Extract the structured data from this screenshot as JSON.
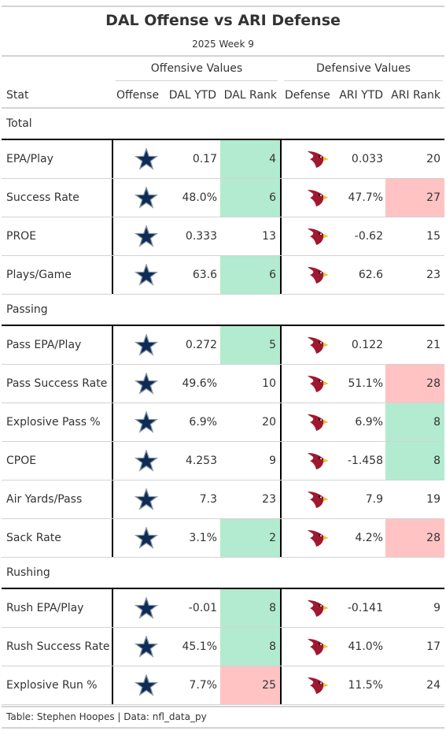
{
  "title": "DAL Offense vs ARI Defense",
  "subtitle": "2025 Week 9",
  "spanners": {
    "offense": "Offensive Values",
    "defense": "Defensive Values"
  },
  "columns": {
    "stat": "Stat",
    "offense": "Offense",
    "off_ytd": "DAL YTD",
    "off_rank": "DAL Rank",
    "defense": "Defense",
    "def_ytd": "ARI YTD",
    "def_rank": "ARI Rank"
  },
  "icons": {
    "offense": "dallas-cowboys-star-icon",
    "defense": "arizona-cardinals-bird-icon"
  },
  "colors": {
    "good": "#b2ebcf",
    "bad": "#ffc3c3",
    "cowboys_navy": "#0c2c56",
    "cardinals_red": "#a0182f"
  },
  "groups": [
    {
      "label": "Total",
      "rows": [
        {
          "stat": "EPA/Play",
          "off_ytd": "0.17",
          "off_rank": "4",
          "off_hl": "good",
          "def_ytd": "0.033",
          "def_rank": "20",
          "def_hl": ""
        },
        {
          "stat": "Success Rate",
          "off_ytd": "48.0%",
          "off_rank": "6",
          "off_hl": "good",
          "def_ytd": "47.7%",
          "def_rank": "27",
          "def_hl": "bad"
        },
        {
          "stat": "PROE",
          "off_ytd": "0.333",
          "off_rank": "13",
          "off_hl": "",
          "def_ytd": "-0.62",
          "def_rank": "15",
          "def_hl": ""
        },
        {
          "stat": "Plays/Game",
          "off_ytd": "63.6",
          "off_rank": "6",
          "off_hl": "good",
          "def_ytd": "62.6",
          "def_rank": "23",
          "def_hl": ""
        }
      ]
    },
    {
      "label": "Passing",
      "rows": [
        {
          "stat": "Pass EPA/Play",
          "off_ytd": "0.272",
          "off_rank": "5",
          "off_hl": "good",
          "def_ytd": "0.122",
          "def_rank": "21",
          "def_hl": ""
        },
        {
          "stat": "Pass Success Rate",
          "off_ytd": "49.6%",
          "off_rank": "10",
          "off_hl": "",
          "def_ytd": "51.1%",
          "def_rank": "28",
          "def_hl": "bad"
        },
        {
          "stat": "Explosive Pass %",
          "off_ytd": "6.9%",
          "off_rank": "20",
          "off_hl": "",
          "def_ytd": "6.9%",
          "def_rank": "8",
          "def_hl": "good"
        },
        {
          "stat": "CPOE",
          "off_ytd": "4.253",
          "off_rank": "9",
          "off_hl": "",
          "def_ytd": "-1.458",
          "def_rank": "8",
          "def_hl": "good"
        },
        {
          "stat": "Air Yards/Pass",
          "off_ytd": "7.3",
          "off_rank": "23",
          "off_hl": "",
          "def_ytd": "7.9",
          "def_rank": "19",
          "def_hl": ""
        },
        {
          "stat": "Sack Rate",
          "off_ytd": "3.1%",
          "off_rank": "2",
          "off_hl": "good",
          "def_ytd": "4.2%",
          "def_rank": "28",
          "def_hl": "bad"
        }
      ]
    },
    {
      "label": "Rushing",
      "rows": [
        {
          "stat": "Rush EPA/Play",
          "off_ytd": "-0.01",
          "off_rank": "8",
          "off_hl": "good",
          "def_ytd": "-0.141",
          "def_rank": "9",
          "def_hl": ""
        },
        {
          "stat": "Rush Success Rate",
          "off_ytd": "45.1%",
          "off_rank": "8",
          "off_hl": "good",
          "def_ytd": "41.0%",
          "def_rank": "17",
          "def_hl": ""
        },
        {
          "stat": "Explosive Run %",
          "off_ytd": "7.7%",
          "off_rank": "25",
          "off_hl": "bad",
          "def_ytd": "11.5%",
          "def_rank": "24",
          "def_hl": ""
        }
      ]
    }
  ],
  "source_note": "Table: Stephen Hoopes | Data: nfl_data_py"
}
